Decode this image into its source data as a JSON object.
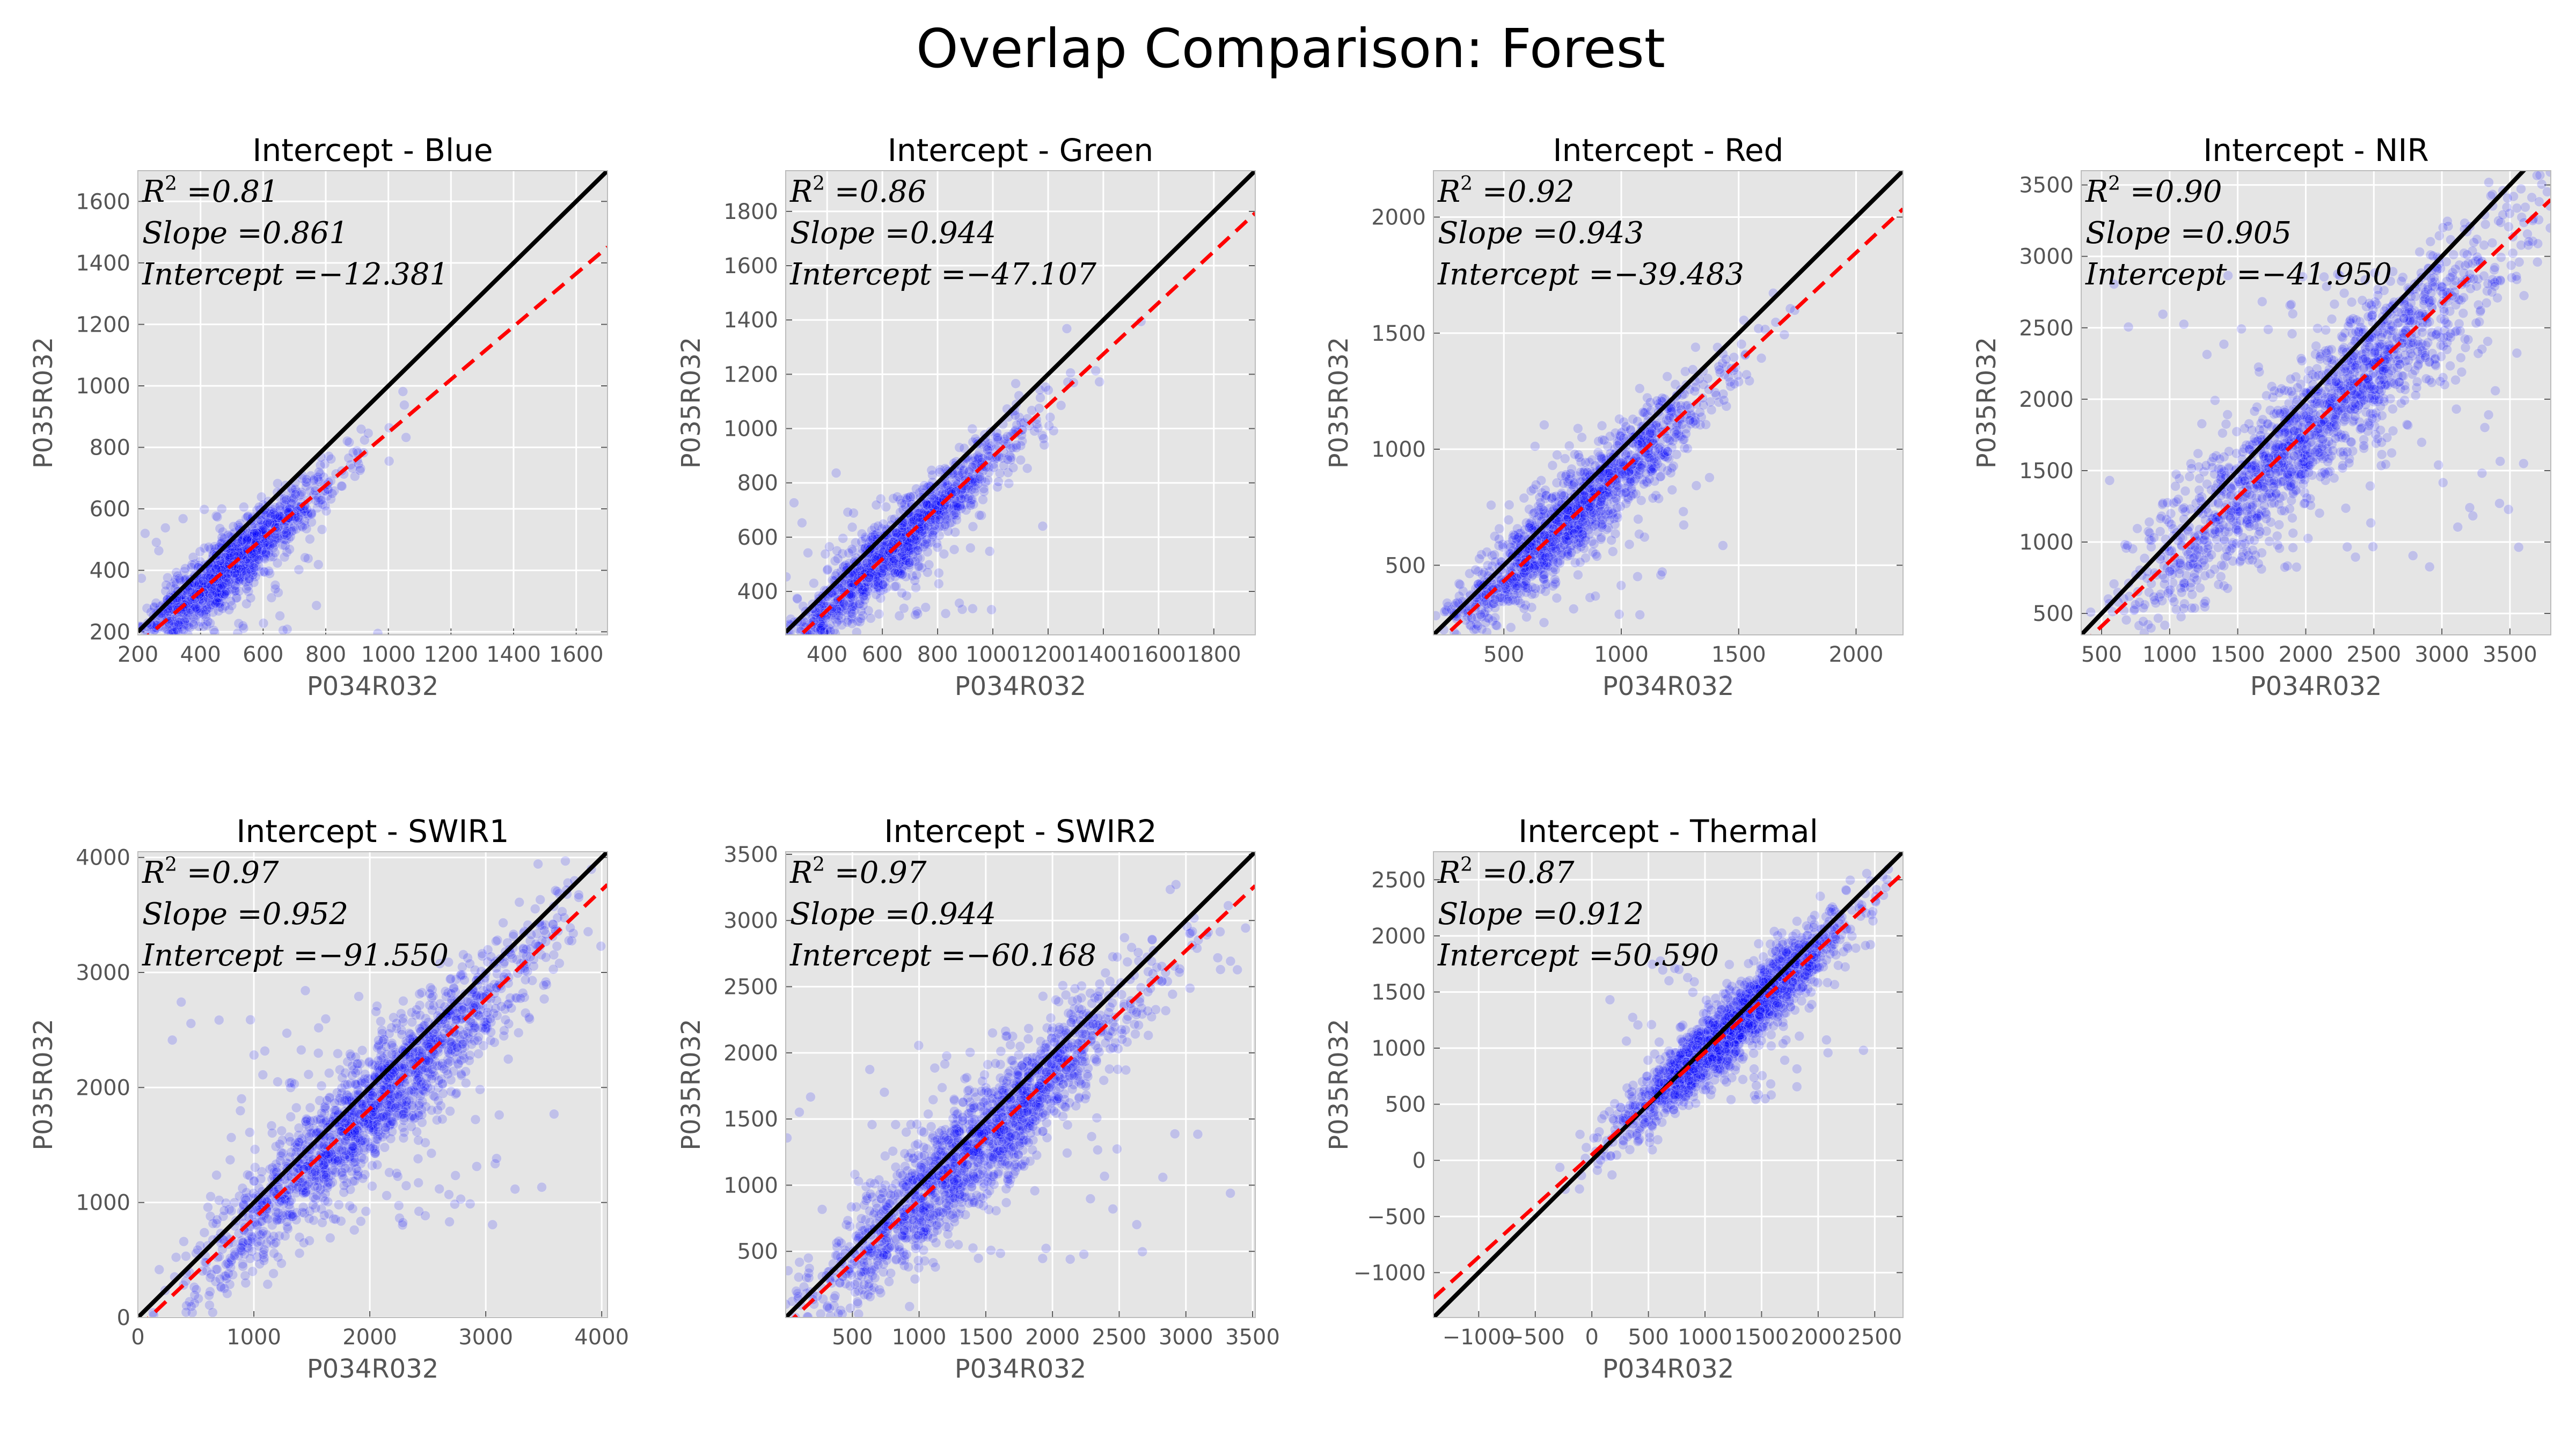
{
  "title": "Overlap Comparison: Forest",
  "colors": {
    "background": "#e5e5e5",
    "grid": "#ffffff",
    "points": "#0000ff",
    "identity_line": "#000000",
    "fit_line": "#ff0000"
  },
  "chart_data": [
    {
      "type": "scatter",
      "title": "Intercept - Blue",
      "xlabel": "P034R032",
      "ylabel": "P035R032",
      "xlim": [
        200,
        1700
      ],
      "ylim": [
        190,
        1700
      ],
      "xticks": [
        200,
        400,
        600,
        800,
        1000,
        1200,
        1400,
        1600
      ],
      "yticks": [
        200,
        400,
        600,
        800,
        1000,
        1200,
        1400,
        1600
      ],
      "grid": true,
      "stats": {
        "r2": "0.81",
        "slope": "0.861",
        "intercept": "−12.381"
      },
      "fit": {
        "slope": 0.861,
        "intercept": -12.381
      },
      "cluster": {
        "center": [
          480,
          380
        ],
        "spread": [
          170,
          150
        ],
        "points": 1400
      }
    },
    {
      "type": "scatter",
      "title": "Intercept - Green",
      "xlabel": "P034R032",
      "ylabel": "P035R032",
      "xlim": [
        250,
        1950
      ],
      "ylim": [
        240,
        1950
      ],
      "xticks": [
        400,
        600,
        800,
        1000,
        1200,
        1400,
        1600,
        1800
      ],
      "yticks": [
        400,
        600,
        800,
        1000,
        1200,
        1400,
        1600,
        1800
      ],
      "grid": true,
      "stats": {
        "r2": "0.86",
        "slope": "0.944",
        "intercept": "−47.107"
      },
      "fit": {
        "slope": 0.944,
        "intercept": -47.107
      },
      "cluster": {
        "center": [
          650,
          560
        ],
        "spread": [
          220,
          190
        ],
        "points": 1400
      }
    },
    {
      "type": "scatter",
      "title": "Intercept - Red",
      "xlabel": "P034R032",
      "ylabel": "P035R032",
      "xlim": [
        200,
        2200
      ],
      "ylim": [
        200,
        2200
      ],
      "xticks": [
        500,
        1000,
        1500,
        2000
      ],
      "yticks": [
        500,
        1000,
        1500,
        2000
      ],
      "grid": true,
      "stats": {
        "r2": "0.92",
        "slope": "0.943",
        "intercept": "−39.483"
      },
      "fit": {
        "slope": 0.943,
        "intercept": -39.483
      },
      "cluster": {
        "center": [
          800,
          700
        ],
        "spread": [
          300,
          280
        ],
        "points": 1500
      }
    },
    {
      "type": "scatter",
      "title": "Intercept - NIR",
      "xlabel": "P034R032",
      "ylabel": "P035R032",
      "xlim": [
        350,
        3800
      ],
      "ylim": [
        350,
        3600
      ],
      "xticks": [
        500,
        1000,
        1500,
        2000,
        2500,
        3000,
        3500
      ],
      "yticks": [
        500,
        1000,
        1500,
        2000,
        2500,
        3000,
        3500
      ],
      "grid": true,
      "stats": {
        "r2": "0.90",
        "slope": "0.905",
        "intercept": "−41.950"
      },
      "fit": {
        "slope": 0.905,
        "intercept": -41.95
      },
      "cluster": {
        "center": [
          2100,
          1850
        ],
        "spread": [
          750,
          700
        ],
        "points": 1800
      }
    },
    {
      "type": "scatter",
      "title": "Intercept - SWIR1",
      "xlabel": "P034R032",
      "ylabel": "P035R032",
      "xlim": [
        0,
        4050
      ],
      "ylim": [
        0,
        4050
      ],
      "xticks": [
        0,
        1000,
        2000,
        3000,
        4000
      ],
      "yticks": [
        0,
        1000,
        2000,
        3000,
        4000
      ],
      "grid": true,
      "stats": {
        "r2": "0.97",
        "slope": "0.952",
        "intercept": "−91.550"
      },
      "fit": {
        "slope": 0.952,
        "intercept": -91.55
      },
      "cluster": {
        "center": [
          2000,
          1800
        ],
        "spread": [
          750,
          700
        ],
        "points": 1800
      }
    },
    {
      "type": "scatter",
      "title": "Intercept - SWIR2",
      "xlabel": "P034R032",
      "ylabel": "P035R032",
      "xlim": [
        0,
        3520
      ],
      "ylim": [
        0,
        3520
      ],
      "xticks": [
        500,
        1000,
        1500,
        2000,
        2500,
        3000,
        3500
      ],
      "yticks": [
        500,
        1000,
        1500,
        2000,
        2500,
        3000,
        3500
      ],
      "grid": true,
      "stats": {
        "r2": "0.97",
        "slope": "0.944",
        "intercept": "−60.168"
      },
      "fit": {
        "slope": 0.944,
        "intercept": -60.168
      },
      "cluster": {
        "center": [
          1450,
          1300
        ],
        "spread": [
          650,
          610
        ],
        "points": 1800
      }
    },
    {
      "type": "scatter",
      "title": "Intercept - Thermal",
      "xlabel": "P034R032",
      "ylabel": "P035R032",
      "xlim": [
        -1400,
        2750
      ],
      "ylim": [
        -1400,
        2750
      ],
      "xticks": [
        -1000,
        -500,
        0,
        500,
        1000,
        1500,
        2000,
        2500
      ],
      "xticklabels": [
        "−1000",
        "−500",
        "0",
        "500",
        "1000",
        "1500",
        "2000",
        "2500"
      ],
      "yticks": [
        -1000,
        -500,
        0,
        500,
        1000,
        1500,
        2000,
        2500
      ],
      "yticklabels": [
        "−1000",
        "−500",
        "0",
        "500",
        "1000",
        "1500",
        "2000",
        "2500"
      ],
      "grid": true,
      "stats": {
        "r2": "0.87",
        "slope": "0.912",
        "intercept": "50.590"
      },
      "fit": {
        "slope": 0.912,
        "intercept": 50.59
      },
      "cluster": {
        "center": [
          1250,
          1200
        ],
        "spread": [
          500,
          450
        ],
        "points": 1800
      }
    }
  ]
}
